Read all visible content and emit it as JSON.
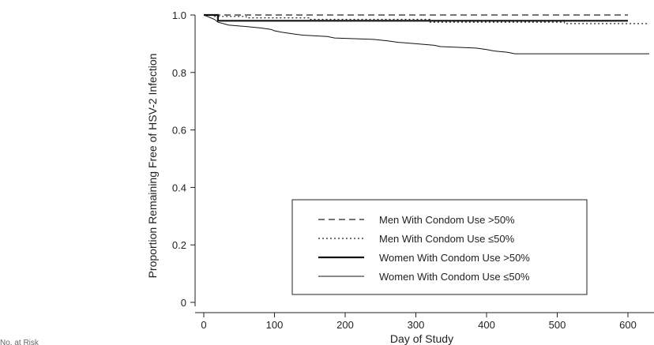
{
  "chart_data": {
    "type": "line",
    "title": "",
    "xlabel": "Day of Study",
    "ylabel": "Proportion Remaining Free of HSV-2 Infection",
    "xlim": [
      -10,
      630
    ],
    "ylim": [
      -0.02,
      1.0
    ],
    "x_ticks": [
      0,
      100,
      200,
      300,
      400,
      500,
      600
    ],
    "y_ticks": [
      0,
      0.2,
      0.4,
      0.6,
      0.8,
      1.0
    ],
    "x_tick_labels": [
      "0",
      "100",
      "200",
      "300",
      "400",
      "500",
      "600"
    ],
    "y_tick_labels": [
      "0",
      "0.2",
      "0.4",
      "0.6",
      "0.8",
      "1.0"
    ],
    "grid": false,
    "legend_position": "bottom-right",
    "series": [
      {
        "name": "Men With Condom Use >50%",
        "style": "dashed",
        "color": "#222222",
        "points": [
          [
            0,
            1.0
          ],
          [
            600,
            1.0
          ]
        ]
      },
      {
        "name": "Men With Condom Use ≤50%",
        "style": "dotted",
        "color": "#222222",
        "points": [
          [
            0,
            1.0
          ],
          [
            15,
            1.0
          ],
          [
            15,
            0.995
          ],
          [
            60,
            0.995
          ],
          [
            60,
            0.99
          ],
          [
            150,
            0.99
          ],
          [
            150,
            0.985
          ],
          [
            320,
            0.985
          ],
          [
            320,
            0.975
          ],
          [
            510,
            0.975
          ],
          [
            510,
            0.97
          ],
          [
            630,
            0.97
          ]
        ]
      },
      {
        "name": "Women With Condom Use >50%",
        "style": "solid-thick",
        "color": "#111111",
        "points": [
          [
            0,
            1.0
          ],
          [
            20,
            1.0
          ],
          [
            20,
            0.98
          ],
          [
            600,
            0.98
          ]
        ]
      },
      {
        "name": "Women With Condom Use ≤50%",
        "style": "solid-thin",
        "color": "#111111",
        "points": [
          [
            0,
            1.0
          ],
          [
            5,
            0.995
          ],
          [
            10,
            0.99
          ],
          [
            15,
            0.985
          ],
          [
            20,
            0.975
          ],
          [
            35,
            0.965
          ],
          [
            60,
            0.96
          ],
          [
            80,
            0.955
          ],
          [
            95,
            0.95
          ],
          [
            100,
            0.945
          ],
          [
            110,
            0.94
          ],
          [
            125,
            0.935
          ],
          [
            140,
            0.93
          ],
          [
            175,
            0.925
          ],
          [
            185,
            0.92
          ],
          [
            240,
            0.915
          ],
          [
            260,
            0.91
          ],
          [
            275,
            0.905
          ],
          [
            300,
            0.9
          ],
          [
            325,
            0.895
          ],
          [
            335,
            0.89
          ],
          [
            385,
            0.885
          ],
          [
            400,
            0.88
          ],
          [
            410,
            0.875
          ],
          [
            430,
            0.87
          ],
          [
            440,
            0.865
          ],
          [
            630,
            0.865
          ]
        ]
      }
    ]
  },
  "footnote": "No. at Risk"
}
